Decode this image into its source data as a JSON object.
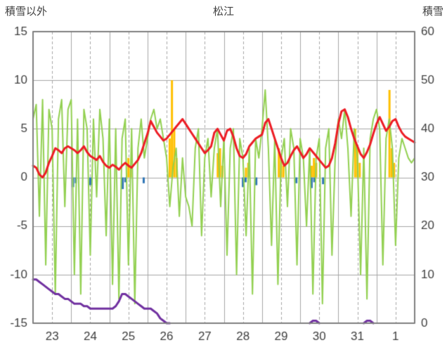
{
  "header": {
    "left": "積雪以外",
    "center": "松江",
    "right": "積雪"
  },
  "chart_data": {
    "type": "line",
    "title": "松江",
    "left_axis": {
      "label": "積雪以外",
      "max": 15,
      "min": -15,
      "ticks": [
        15,
        10,
        5,
        0,
        -5,
        -10,
        -15
      ]
    },
    "right_axis": {
      "label": "積雪",
      "max": 60,
      "min": 0,
      "ticks": [
        60,
        50,
        40,
        30,
        20,
        10,
        0
      ]
    },
    "x_axis": {
      "labels": [
        "23",
        "24",
        "25",
        "26",
        "27",
        "28",
        "29",
        "30",
        "31",
        "1"
      ],
      "days": 10
    },
    "grid": {
      "color": "#a6a6a6",
      "border_color": "#7f7f7f",
      "text_color": "#404040"
    },
    "bars": [
      {
        "name": "orange-bars",
        "axis": "left",
        "color": "#ffc000",
        "width": 3,
        "points": [
          [
            2.5,
            2
          ],
          [
            2.56,
            1.2
          ],
          [
            3.58,
            4
          ],
          [
            3.64,
            10
          ],
          [
            3.7,
            5
          ],
          [
            3.76,
            2
          ],
          [
            4.84,
            2.5
          ],
          [
            4.9,
            3
          ],
          [
            4.96,
            1.2
          ],
          [
            5.58,
            1
          ],
          [
            5.64,
            1.5
          ],
          [
            6.44,
            3
          ],
          [
            6.5,
            2.2
          ],
          [
            6.56,
            1.2
          ],
          [
            7.3,
            1.2
          ],
          [
            7.36,
            2
          ],
          [
            7.42,
            1.5
          ],
          [
            8.44,
            5
          ],
          [
            8.5,
            3
          ],
          [
            8.56,
            1.5
          ],
          [
            9.34,
            9
          ],
          [
            9.4,
            3
          ],
          [
            9.46,
            1.5
          ]
        ]
      },
      {
        "name": "blue-bars",
        "axis": "left",
        "color": "#2e75b6",
        "width": 3,
        "points": [
          [
            1.05,
            -1
          ],
          [
            1.12,
            -0.6
          ],
          [
            1.5,
            -0.8
          ],
          [
            2.35,
            -1.2
          ],
          [
            2.42,
            -0.5
          ],
          [
            2.9,
            -0.6
          ],
          [
            5.5,
            -1
          ],
          [
            5.57,
            -0.5
          ],
          [
            5.85,
            -0.8
          ],
          [
            6.9,
            -0.6
          ],
          [
            7.3,
            -1.1
          ],
          [
            7.37,
            -0.5
          ],
          [
            7.6,
            -0.7
          ]
        ]
      }
    ],
    "series": [
      {
        "name": "green-line",
        "axis": "left",
        "color": "#92d050",
        "width": 2,
        "step_hours": 2,
        "values": [
          6,
          7.5,
          -4,
          8,
          -9,
          7,
          5,
          -12,
          6,
          8,
          -3,
          7,
          8,
          -10,
          6,
          -12,
          7,
          5,
          -8,
          6,
          -2,
          7,
          4,
          -6,
          6,
          -11,
          5,
          -12.5,
          4,
          6,
          -9,
          5,
          -13,
          3,
          6,
          2,
          4,
          6,
          7,
          5,
          6,
          4,
          2,
          -3,
          1,
          3,
          -4,
          2,
          -2,
          -3,
          -5,
          3,
          5,
          -6,
          2,
          4,
          -2,
          3,
          5,
          -3,
          4,
          -8,
          3,
          5,
          -10,
          4,
          2,
          -6,
          3,
          -12,
          4,
          2,
          5,
          9,
          3,
          -7,
          4,
          -11,
          2,
          4,
          -3,
          5,
          3,
          -9,
          4,
          2,
          -5,
          3,
          -12,
          2,
          4,
          -13,
          3,
          5,
          -8,
          2,
          6,
          4,
          7,
          3,
          -4,
          5,
          2,
          -10,
          3,
          -12.5,
          4,
          6,
          7,
          5,
          -9,
          4,
          6,
          3,
          -7,
          2,
          4,
          3,
          2,
          1.5,
          2
        ]
      },
      {
        "name": "red-line",
        "axis": "left",
        "color": "#ed1c24",
        "width": 3,
        "step_hours": 2,
        "values": [
          1.2,
          1,
          0.3,
          0,
          0.5,
          1.5,
          2.2,
          3,
          2.8,
          2.5,
          3,
          3.2,
          3,
          2.8,
          2.5,
          2.8,
          3.2,
          2.6,
          2.2,
          2,
          1.8,
          2.2,
          1.6,
          1.2,
          1,
          1.3,
          1.1,
          0.8,
          1.2,
          1.5,
          1.2,
          1,
          1.4,
          1.8,
          2.5,
          3.5,
          4.5,
          5.8,
          5.2,
          4.6,
          4.2,
          3.8,
          4,
          4.4,
          4.8,
          5.2,
          5.6,
          6,
          5.5,
          5,
          4.5,
          4,
          3.5,
          3,
          2.5,
          2.8,
          3.2,
          4.6,
          5,
          4.4,
          3.8,
          4.8,
          5,
          4.2,
          3,
          2.2,
          2,
          2.4,
          3.2,
          3.6,
          4,
          4.2,
          4.4,
          5.6,
          6,
          5,
          4,
          3,
          2,
          1.2,
          1.5,
          2.2,
          2.8,
          3.2,
          2.6,
          2,
          2.4,
          3,
          2.6,
          2.2,
          1.8,
          1.4,
          1,
          1.2,
          2,
          3.5,
          5.5,
          6.8,
          7,
          6.2,
          5,
          4,
          3.2,
          2.4,
          2,
          2.6,
          3.4,
          4.5,
          5.5,
          6.2,
          5.5,
          4.8,
          5.2,
          5.8,
          6,
          5.2,
          4.6,
          4.2,
          4,
          3.8,
          3.6
        ]
      },
      {
        "name": "purple-line",
        "axis": "right",
        "color": "#7030a0",
        "width": 3,
        "step_hours": 2,
        "values": [
          9,
          9,
          8.5,
          8,
          7.5,
          7,
          6.5,
          6,
          6,
          5.5,
          5,
          5,
          4.5,
          4,
          4,
          4,
          3.5,
          3.5,
          3,
          3,
          3,
          3,
          3,
          3,
          3,
          3,
          3.5,
          4.5,
          6,
          6,
          5.5,
          5,
          4.5,
          4,
          3.5,
          3,
          3,
          3,
          2.5,
          2,
          1,
          0.5,
          0,
          0,
          null,
          null,
          null,
          null,
          null,
          null,
          null,
          null,
          null,
          null,
          null,
          null,
          null,
          null,
          null,
          null,
          null,
          null,
          null,
          null,
          null,
          null,
          null,
          null,
          null,
          null,
          null,
          null,
          null,
          null,
          null,
          null,
          null,
          null,
          null,
          null,
          null,
          null,
          null,
          null,
          null,
          null,
          null,
          0,
          0.5,
          0.5,
          0,
          null,
          null,
          null,
          null,
          null,
          null,
          null,
          null,
          null,
          null,
          null,
          null,
          null,
          0,
          0.5,
          0.5,
          0,
          null,
          null,
          null,
          null,
          null,
          null,
          null,
          null,
          null,
          null,
          null,
          null,
          null
        ]
      }
    ]
  }
}
